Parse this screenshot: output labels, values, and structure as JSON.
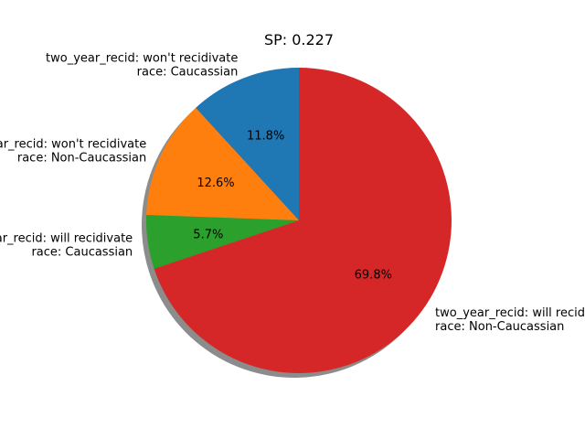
{
  "chart_data": {
    "type": "pie",
    "title": "SP: 0.227",
    "shadow": true,
    "start_angle_deg": 90,
    "direction": "counterclockwise",
    "slices": [
      {
        "label_lines": [
          "two_year_recid: won't recidivate",
          "race: Caucassian"
        ],
        "value": 11.8,
        "pct_text": "11.8%",
        "color": "#1f77b4"
      },
      {
        "label_lines": [
          "two_year_recid: won't recidivate",
          "race: Non-Caucassian"
        ],
        "value": 12.6,
        "pct_text": "12.6%",
        "color": "#ff7f0e"
      },
      {
        "label_lines": [
          "two_year_recid: will recidivate",
          "race: Caucassian"
        ],
        "value": 5.7,
        "pct_text": "5.7%",
        "color": "#2ca02c"
      },
      {
        "label_lines": [
          "two_year_recid: will recidivate",
          "race: Non-Caucassian"
        ],
        "value": 69.8,
        "pct_text": "69.8%",
        "color": "#d62728"
      }
    ]
  }
}
